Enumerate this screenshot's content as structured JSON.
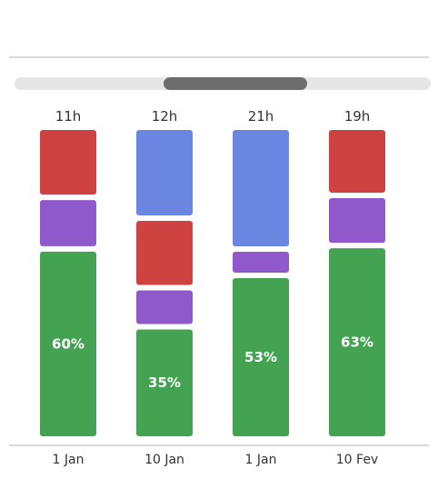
{
  "scrollbar": {
    "position": 0.5
  },
  "chart_data": {
    "type": "bar",
    "stacked": true,
    "categories": [
      "1 Jan",
      "10 Jan",
      "1 Jan",
      "10 Fev"
    ],
    "totals": [
      "11h",
      "12h",
      "21h",
      "19h"
    ],
    "series": [
      {
        "color": "#43a352",
        "values": [
          60,
          35,
          53,
          63
        ],
        "labels": [
          "60%",
          "35%",
          "53%",
          "63%"
        ]
      },
      {
        "color": "#9059cb",
        "values": [
          15,
          11,
          7,
          15
        ]
      },
      {
        "color": "#cf4242",
        "values": [
          21,
          21,
          0,
          21
        ]
      },
      {
        "color": "#6a86e1",
        "values": [
          0,
          28,
          39,
          0
        ]
      }
    ],
    "ylim": [
      0,
      100
    ],
    "grid": false,
    "legend": "none"
  }
}
